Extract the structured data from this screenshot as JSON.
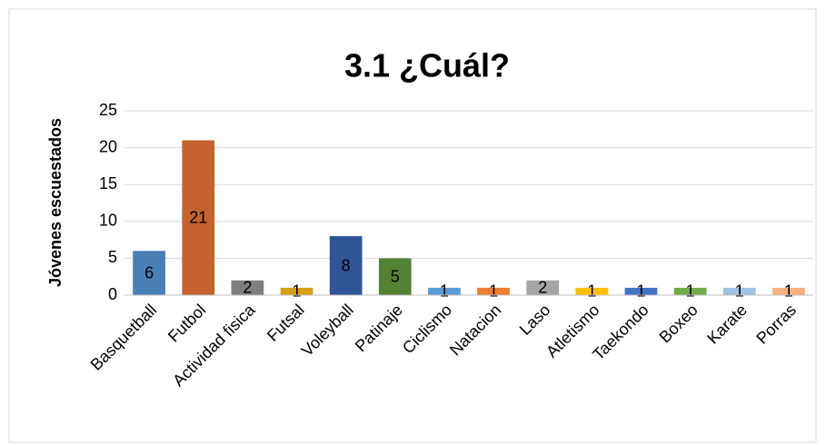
{
  "chart_data": {
    "type": "bar",
    "title": "3.1 ¿Cuál?",
    "y_label": "Jóvenes escuestados",
    "categories": [
      "Basquetball",
      "Futbol",
      "Actividad fisica",
      "Futsal",
      "Voleyball",
      "Patinaje",
      "Ciclismo",
      "Natacion",
      "Laso",
      "Atletismo",
      "Taekondo",
      "Boxeo",
      "Karate",
      "Porras"
    ],
    "values": [
      6,
      21,
      2,
      1,
      8,
      5,
      1,
      1,
      2,
      1,
      1,
      1,
      1,
      1
    ],
    "colors": [
      "#4a7fb5",
      "#c4622d",
      "#7f7f7f",
      "#d4a017",
      "#2f5597",
      "#548235",
      "#5b9bd5",
      "#ed7d31",
      "#a5a5a5",
      "#ffc000",
      "#4472c4",
      "#70ad47",
      "#9dc3e6",
      "#f4b183"
    ],
    "ylim": [
      0,
      25
    ],
    "yticks": [
      0,
      5,
      10,
      15,
      20,
      25
    ],
    "grid": true
  }
}
